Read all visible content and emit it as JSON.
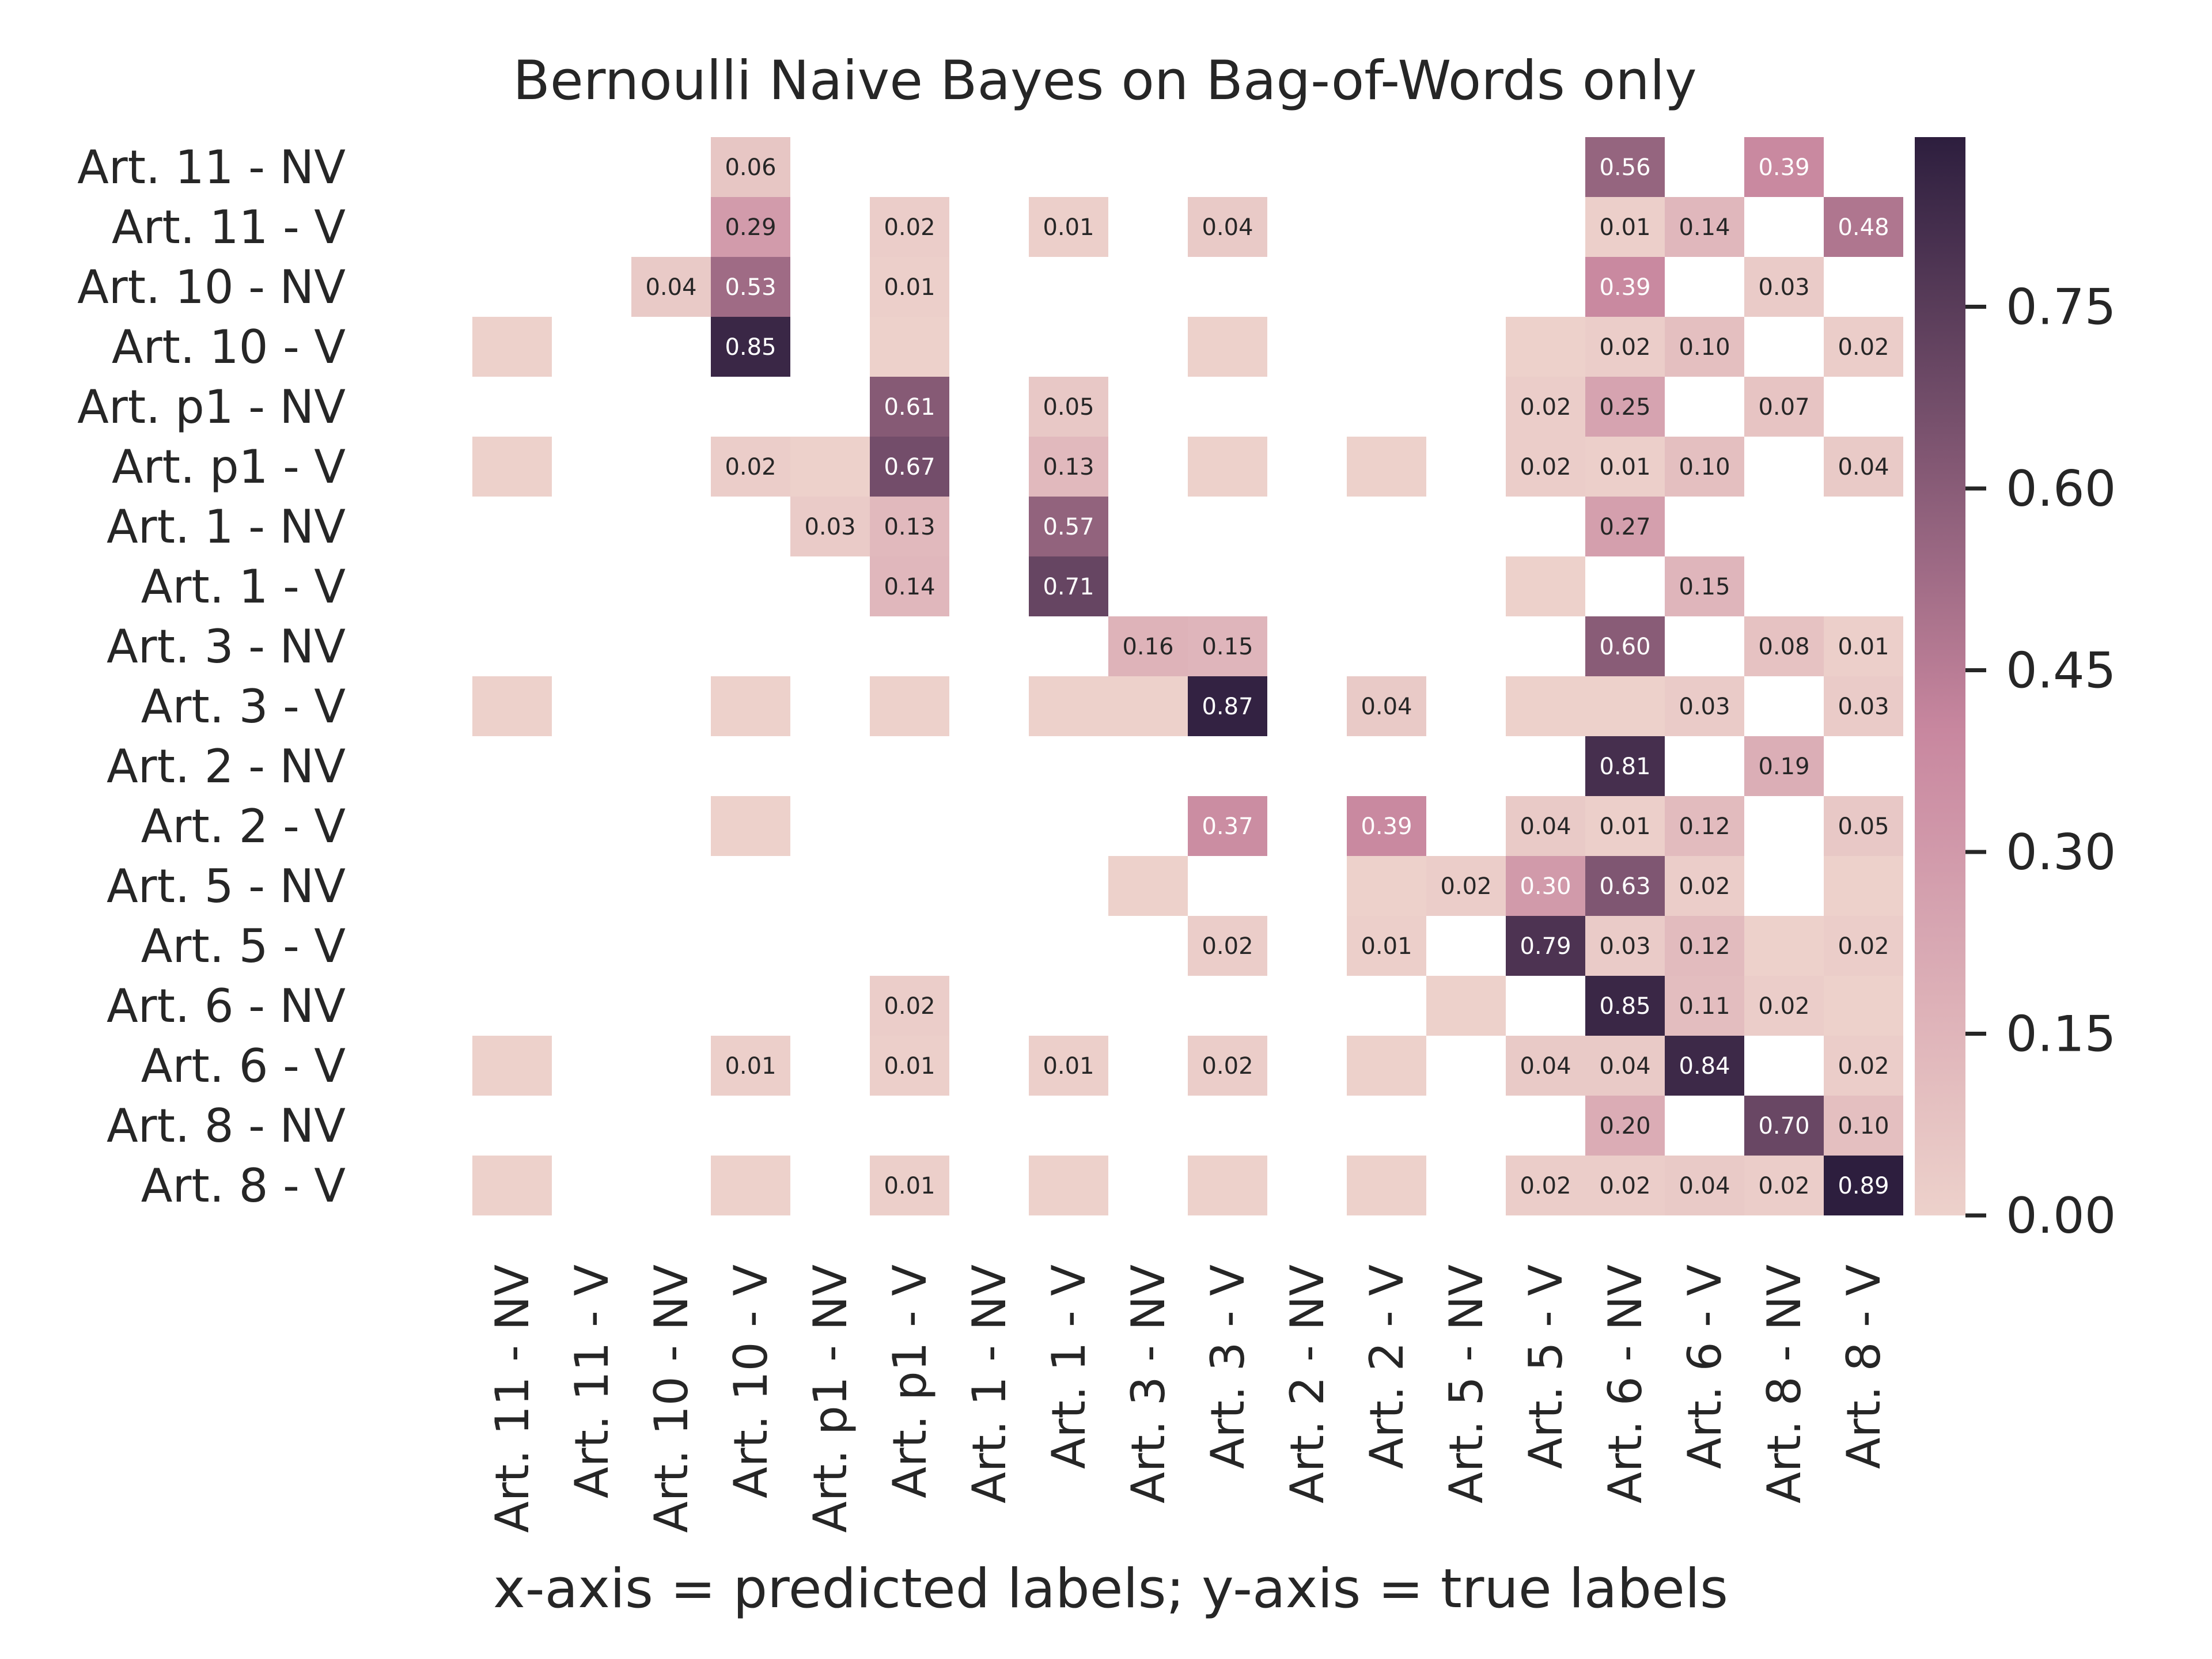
{
  "chart_data": {
    "type": "heatmap",
    "title": "Bernoulli Naive Bayes on Bag-of-Words only",
    "xlabel": "x-axis = predicted labels; y-axis = true labels",
    "ylabel": "",
    "labels": [
      "Art. 11 - NV",
      "Art. 11 - V",
      "Art. 10 - NV",
      "Art. 10 - V",
      "Art. p1 - NV",
      "Art. p1 - V",
      "Art. 1 - NV",
      "Art. 1 - V",
      "Art. 3 - NV",
      "Art. 3 - V",
      "Art. 2 - NV",
      "Art. 2 - V",
      "Art. 5 - NV",
      "Art. 5 - V",
      "Art. 6 - NV",
      "Art. 6 - V",
      "Art. 8 - NV",
      "Art. 8 - V"
    ],
    "values": [
      [
        0,
        0,
        0,
        0.06,
        0,
        0,
        0,
        0,
        0,
        0,
        0,
        0,
        0,
        0,
        0.56,
        0,
        0.39,
        0
      ],
      [
        0,
        0,
        0,
        0.29,
        0,
        0.02,
        0,
        0.01,
        0,
        0.04,
        0,
        0,
        0,
        0,
        0.01,
        0.14,
        0,
        0.48
      ],
      [
        0,
        0,
        0.04,
        0.53,
        0,
        0.01,
        0,
        0,
        0,
        0,
        0,
        0,
        0,
        0,
        0.39,
        0,
        0.03,
        0
      ],
      [
        0.001,
        0,
        0,
        0.85,
        0,
        0.001,
        0,
        0,
        0,
        0.001,
        0,
        0,
        0,
        0.001,
        0.02,
        0.1,
        0,
        0.02
      ],
      [
        0,
        0,
        0,
        0,
        0,
        0.61,
        0,
        0.05,
        0,
        0,
        0,
        0,
        0,
        0.02,
        0.25,
        0,
        0.07,
        0
      ],
      [
        0.001,
        0,
        0,
        0.02,
        0.001,
        0.67,
        0,
        0.13,
        0,
        0.001,
        0,
        0.001,
        0,
        0.02,
        0.01,
        0.1,
        0,
        0.04
      ],
      [
        0,
        0,
        0,
        0,
        0.03,
        0.13,
        0,
        0.57,
        0,
        0,
        0,
        0,
        0,
        0,
        0.27,
        0,
        0,
        0
      ],
      [
        0,
        0,
        0,
        0,
        0,
        0.14,
        0,
        0.71,
        0,
        0,
        0,
        0,
        0,
        0.001,
        0,
        0.15,
        0,
        0
      ],
      [
        0,
        0,
        0,
        0,
        0,
        0,
        0,
        0,
        0.16,
        0.15,
        0,
        0,
        0,
        0,
        0.6,
        0,
        0.08,
        0.01
      ],
      [
        0.001,
        0,
        0,
        0.001,
        0,
        0.001,
        0,
        0.001,
        0.001,
        0.87,
        0,
        0.04,
        0,
        0.001,
        0.001,
        0.03,
        0,
        0.03
      ],
      [
        0,
        0,
        0,
        0,
        0,
        0,
        0,
        0,
        0,
        0,
        0,
        0,
        0,
        0,
        0.81,
        0,
        0.19,
        0
      ],
      [
        0,
        0,
        0,
        0.001,
        0,
        0,
        0,
        0,
        0,
        0.37,
        0,
        0.39,
        0,
        0.04,
        0.01,
        0.12,
        0,
        0.05
      ],
      [
        0,
        0,
        0,
        0,
        0,
        0,
        0,
        0,
        0.001,
        0,
        0,
        0.001,
        0.02,
        0.3,
        0.63,
        0.02,
        0,
        0.001
      ],
      [
        0,
        0,
        0,
        0,
        0,
        0,
        0,
        0,
        0,
        0.02,
        0,
        0.01,
        0,
        0.79,
        0.03,
        0.12,
        0.001,
        0.02
      ],
      [
        0,
        0,
        0,
        0,
        0,
        0.02,
        0,
        0,
        0,
        0,
        0,
        0,
        0.001,
        0,
        0.85,
        0.11,
        0.02,
        0.001
      ],
      [
        0.001,
        0,
        0,
        0.01,
        0,
        0.01,
        0,
        0.01,
        0,
        0.02,
        0,
        0.001,
        0,
        0.04,
        0.04,
        0.84,
        0,
        0.02
      ],
      [
        0,
        0,
        0,
        0,
        0,
        0,
        0,
        0,
        0,
        0,
        0,
        0,
        0,
        0,
        0.2,
        0,
        0.7,
        0.1
      ],
      [
        0.001,
        0,
        0,
        0.001,
        0,
        0.01,
        0,
        0.001,
        0,
        0.001,
        0,
        0.001,
        0,
        0.02,
        0.02,
        0.04,
        0.02,
        0.89
      ]
    ],
    "colorbar": {
      "range": [
        0,
        0.89
      ],
      "ticks": [
        "0.00",
        "0.15",
        "0.30",
        "0.45",
        "0.60",
        "0.75"
      ]
    },
    "colors": {
      "low": "#edd1cb",
      "mid": "#c8879f",
      "high": "#2d1e3e",
      "text_dark": "#262626",
      "text_light": "#ffffff"
    },
    "grid": false,
    "legend": "colorbar-right"
  }
}
